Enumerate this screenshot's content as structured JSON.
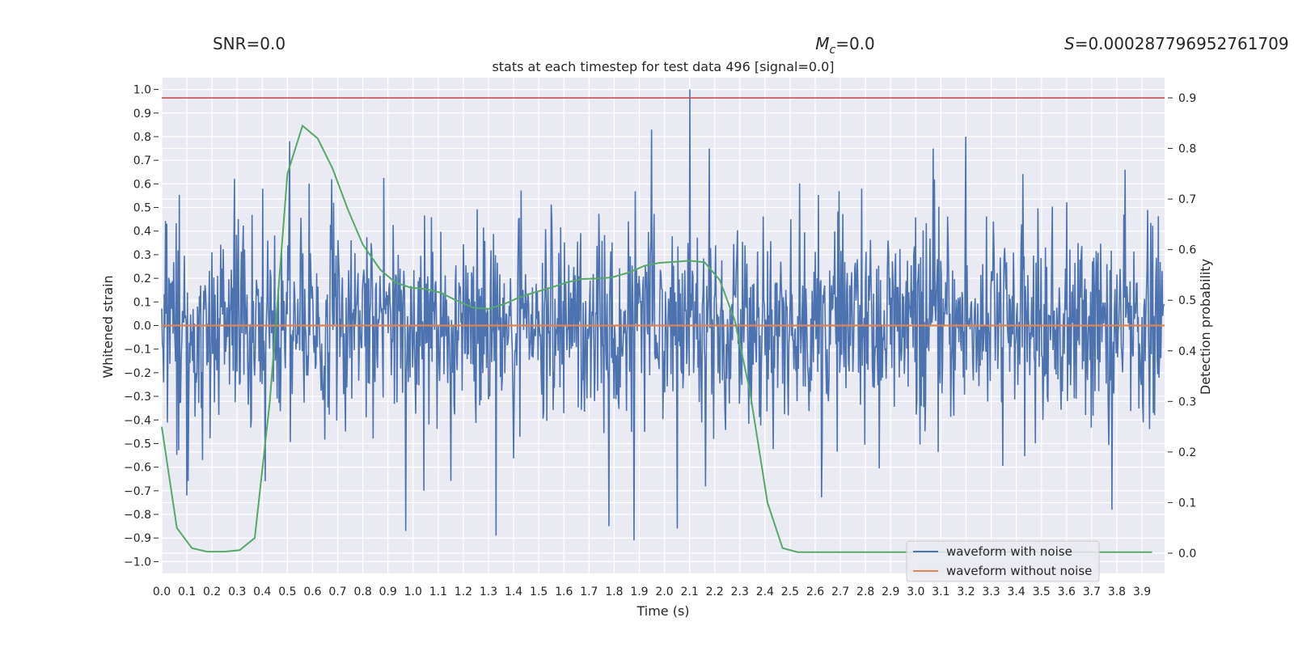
{
  "chart_data": {
    "type": "line",
    "header": {
      "snr": "SNR=0.0",
      "mc_symbol": "M",
      "mc_subscript": "c",
      "mc_value": "=0.0",
      "s_symbol": "S",
      "s_value": "=0.000287796952761709"
    },
    "title": "stats at each timestep for test data 496 [signal=0.0]",
    "xlabel": "Time (s)",
    "ylabel_left": "Whitened strain",
    "ylabel_right": "Detection probability",
    "xlim": [
      0.0,
      3.99
    ],
    "ylim_left": [
      -1.05,
      1.05
    ],
    "ylim_right": [
      -0.04,
      0.94
    ],
    "x_ticks": [
      0.0,
      0.1,
      0.2,
      0.3,
      0.4,
      0.5,
      0.6,
      0.7,
      0.8,
      0.9,
      1.0,
      1.1,
      1.2,
      1.3,
      1.4,
      1.5,
      1.6,
      1.7,
      1.8,
      1.9,
      2.0,
      2.1,
      2.2,
      2.3,
      2.4,
      2.5,
      2.6,
      2.7,
      2.8,
      2.9,
      3.0,
      3.1,
      3.2,
      3.3,
      3.4,
      3.5,
      3.6,
      3.7,
      3.8,
      3.9
    ],
    "x_tick_labels": [
      "0.0",
      "0.1",
      "0.2",
      "0.3",
      "0.4",
      "0.5",
      "0.6",
      "0.7",
      "0.8",
      "0.9",
      "1.0",
      "1.1",
      "1.2",
      "1.3",
      "1.4",
      "1.5",
      "1.6",
      "1.7",
      "1.8",
      "1.9",
      "2.0",
      "2.1",
      "2.2",
      "2.3",
      "2.4",
      "2.5",
      "2.6",
      "2.7",
      "2.8",
      "2.9",
      "3.0",
      "3.1",
      "3.2",
      "3.3",
      "3.4",
      "3.5",
      "3.6",
      "3.7",
      "3.8",
      "3.9"
    ],
    "y_ticks_left": [
      1.0,
      0.9,
      0.8,
      0.7,
      0.6,
      0.5,
      0.4,
      0.3,
      0.2,
      0.1,
      0.0,
      -0.1,
      -0.2,
      -0.3,
      -0.4,
      -0.5,
      -0.6,
      -0.7,
      -0.8,
      -0.9,
      -1.0
    ],
    "y_tick_labels_left": [
      "1.0",
      "0.9",
      "0.8",
      "0.7",
      "0.6",
      "0.5",
      "0.4",
      "0.3",
      "0.2",
      "0.1",
      "0.0",
      "−0.1",
      "−0.2",
      "−0.3",
      "−0.4",
      "−0.5",
      "−0.6",
      "−0.7",
      "−0.8",
      "−0.9",
      "−1.0"
    ],
    "y_ticks_right": [
      0.9,
      0.8,
      0.7,
      0.6,
      0.5,
      0.4,
      0.3,
      0.2,
      0.1,
      0.0
    ],
    "y_tick_labels_right": [
      "0.9",
      "0.8",
      "0.7",
      "0.6",
      "0.5",
      "0.4",
      "0.3",
      "0.2",
      "0.1",
      "0.0"
    ],
    "threshold": {
      "axis": "right",
      "value": 0.9,
      "color": "#c44e52"
    },
    "noise_series": {
      "name": "waveform with noise",
      "color": "#4c72b0",
      "num_samples": 1600,
      "amplitude_envelope": 0.38,
      "notable_spikes": [
        {
          "x": 2.1,
          "y": 1.0
        },
        {
          "x": 1.95,
          "y": 0.83
        },
        {
          "x": 3.2,
          "y": 0.8
        },
        {
          "x": 0.51,
          "y": 0.78
        },
        {
          "x": 1.33,
          "y": -0.89
        },
        {
          "x": 1.88,
          "y": -0.91
        },
        {
          "x": 0.97,
          "y": -0.87
        },
        {
          "x": 2.05,
          "y": -0.86
        },
        {
          "x": 1.78,
          "y": -0.85
        },
        {
          "x": 3.78,
          "y": -0.78
        },
        {
          "x": 0.1,
          "y": -0.72
        }
      ]
    },
    "clean_series": {
      "name": "waveform without noise",
      "color": "#dd8452",
      "value": 0.0
    },
    "probability_series": {
      "name": "detection probability",
      "color": "#55a868",
      "x": [
        0.0,
        0.06,
        0.12,
        0.18,
        0.25,
        0.31,
        0.37,
        0.43,
        0.5,
        0.56,
        0.62,
        0.68,
        0.74,
        0.8,
        0.87,
        0.93,
        0.99,
        1.05,
        1.11,
        1.17,
        1.24,
        1.3,
        1.36,
        1.42,
        1.48,
        1.55,
        1.61,
        1.67,
        1.73,
        1.79,
        1.86,
        1.92,
        1.98,
        2.04,
        2.1,
        2.16,
        2.22,
        2.28,
        2.34,
        2.41,
        2.47,
        2.53,
        2.59,
        2.65,
        2.71,
        2.77,
        2.84,
        2.9,
        2.96,
        3.02,
        3.08,
        3.14,
        3.2,
        3.27,
        3.33,
        3.39,
        3.45,
        3.51,
        3.57,
        3.63,
        3.69,
        3.76,
        3.82,
        3.88,
        3.94
      ],
      "y": [
        0.25,
        0.05,
        0.01,
        0.003,
        0.003,
        0.006,
        0.03,
        0.3,
        0.75,
        0.845,
        0.82,
        0.76,
        0.68,
        0.61,
        0.56,
        0.535,
        0.525,
        0.522,
        0.515,
        0.5,
        0.485,
        0.483,
        0.492,
        0.505,
        0.515,
        0.525,
        0.535,
        0.542,
        0.543,
        0.545,
        0.555,
        0.568,
        0.574,
        0.576,
        0.578,
        0.575,
        0.54,
        0.46,
        0.32,
        0.1,
        0.01,
        0.002,
        0.002,
        0.002,
        0.002,
        0.002,
        0.002,
        0.002,
        0.002,
        0.002,
        0.002,
        0.002,
        0.002,
        0.002,
        0.002,
        0.002,
        0.002,
        0.002,
        0.002,
        0.002,
        0.002,
        0.002,
        0.002,
        0.002,
        0.002
      ]
    },
    "legend": {
      "position": "lower-right",
      "entries": [
        {
          "label": "waveform with noise",
          "color": "#4c72b0"
        },
        {
          "label": "waveform without noise",
          "color": "#dd8452"
        }
      ]
    },
    "grid": true,
    "style": {
      "background": "#eaeaf2",
      "grid_color": "#ffffff"
    }
  }
}
